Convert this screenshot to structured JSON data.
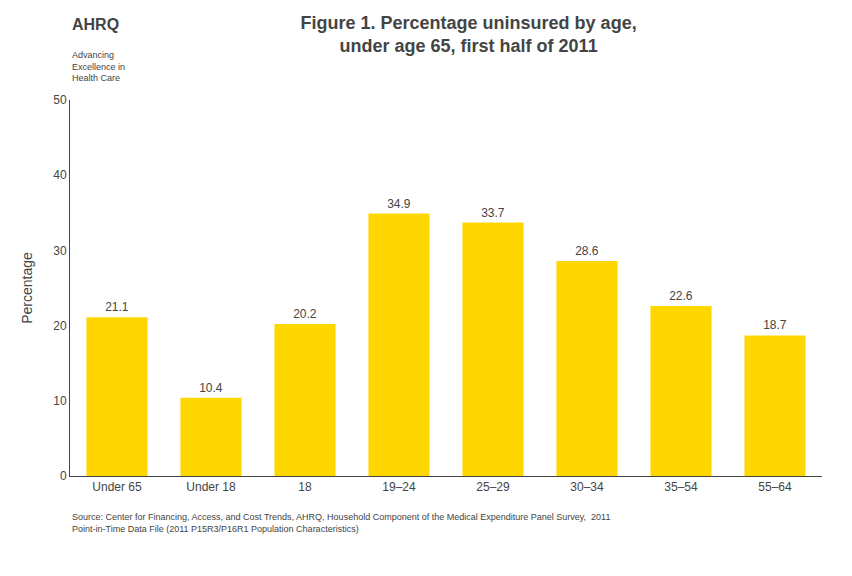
{
  "chart_data": {
    "type": "bar",
    "title": "Figure 1. Percentage uninsured by age,\nunder age 65, first half of 2011",
    "categories": [
      "Under 65",
      "Under 18",
      "18",
      "19–24",
      "25–29",
      "30–34",
      "35–54",
      "55–64"
    ],
    "values": [
      21.1,
      10.4,
      20.2,
      34.9,
      33.7,
      28.6,
      22.6,
      18.7
    ],
    "color": "#FFD700",
    "ylabel": "Percentage",
    "ylim": [
      0,
      50
    ],
    "yticks": [
      0,
      10,
      20,
      30,
      40,
      50
    ],
    "grid": false,
    "data_labels": true,
    "annotations": [
      "Source: Center for Financing, Access, and Cost Trends, AHRQ, Household Component of the Medical Expenditure Panel Survey,  2011\nPoint-in-Time Data File (2011 P15R3/P16R1 Population Characteristics)",
      "AHRQ",
      "Advancing\nExcellence in\nHealth Care"
    ]
  }
}
